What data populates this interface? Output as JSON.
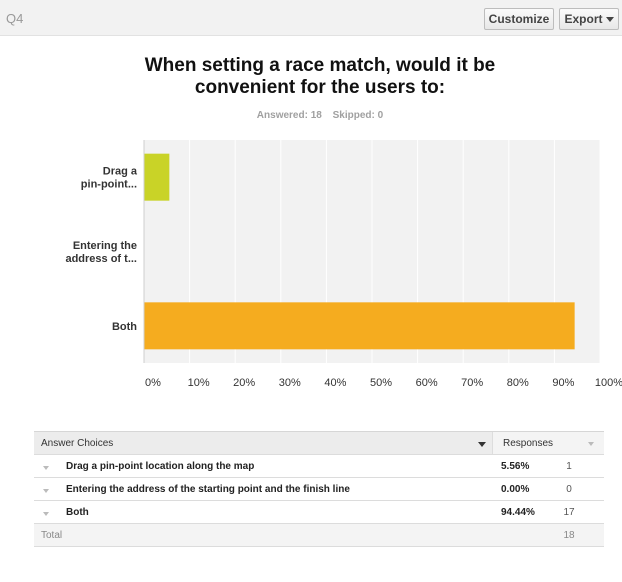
{
  "question_label": "Q4",
  "buttons": {
    "customize": "Customize",
    "export": "Export"
  },
  "title": "When setting a race match, would it be convenient for the users to:",
  "stats": {
    "answered": "Answered: 18",
    "skipped": "Skipped: 0"
  },
  "chart_data": {
    "type": "bar",
    "orientation": "horizontal",
    "categories": [
      "Drag a pin-point...",
      "Entering the address of t...",
      "Both"
    ],
    "category_lines": [
      [
        "Drag a",
        "pin-point..."
      ],
      [
        "Entering the",
        "address of t..."
      ],
      [
        "Both"
      ]
    ],
    "values": [
      5.56,
      0.0,
      94.44
    ],
    "xlim": [
      0,
      100
    ],
    "tick_labels": [
      "0%",
      "10%",
      "20%",
      "30%",
      "40%",
      "50%",
      "60%",
      "70%",
      "80%",
      "90%",
      "100%"
    ],
    "colors": [
      "#c9d327",
      "#0099cc",
      "#f5ac1f"
    ],
    "grid": true
  },
  "table": {
    "header": {
      "choices": "Answer Choices",
      "responses": "Responses"
    },
    "rows": [
      {
        "choice": "Drag a pin-point location along the map",
        "pct": "5.56%",
        "count": "1"
      },
      {
        "choice": "Entering the address of the starting point and the finish line",
        "pct": "0.00%",
        "count": "0"
      },
      {
        "choice": "Both",
        "pct": "94.44%",
        "count": "17"
      }
    ],
    "total": {
      "label": "Total",
      "count": "18"
    }
  }
}
